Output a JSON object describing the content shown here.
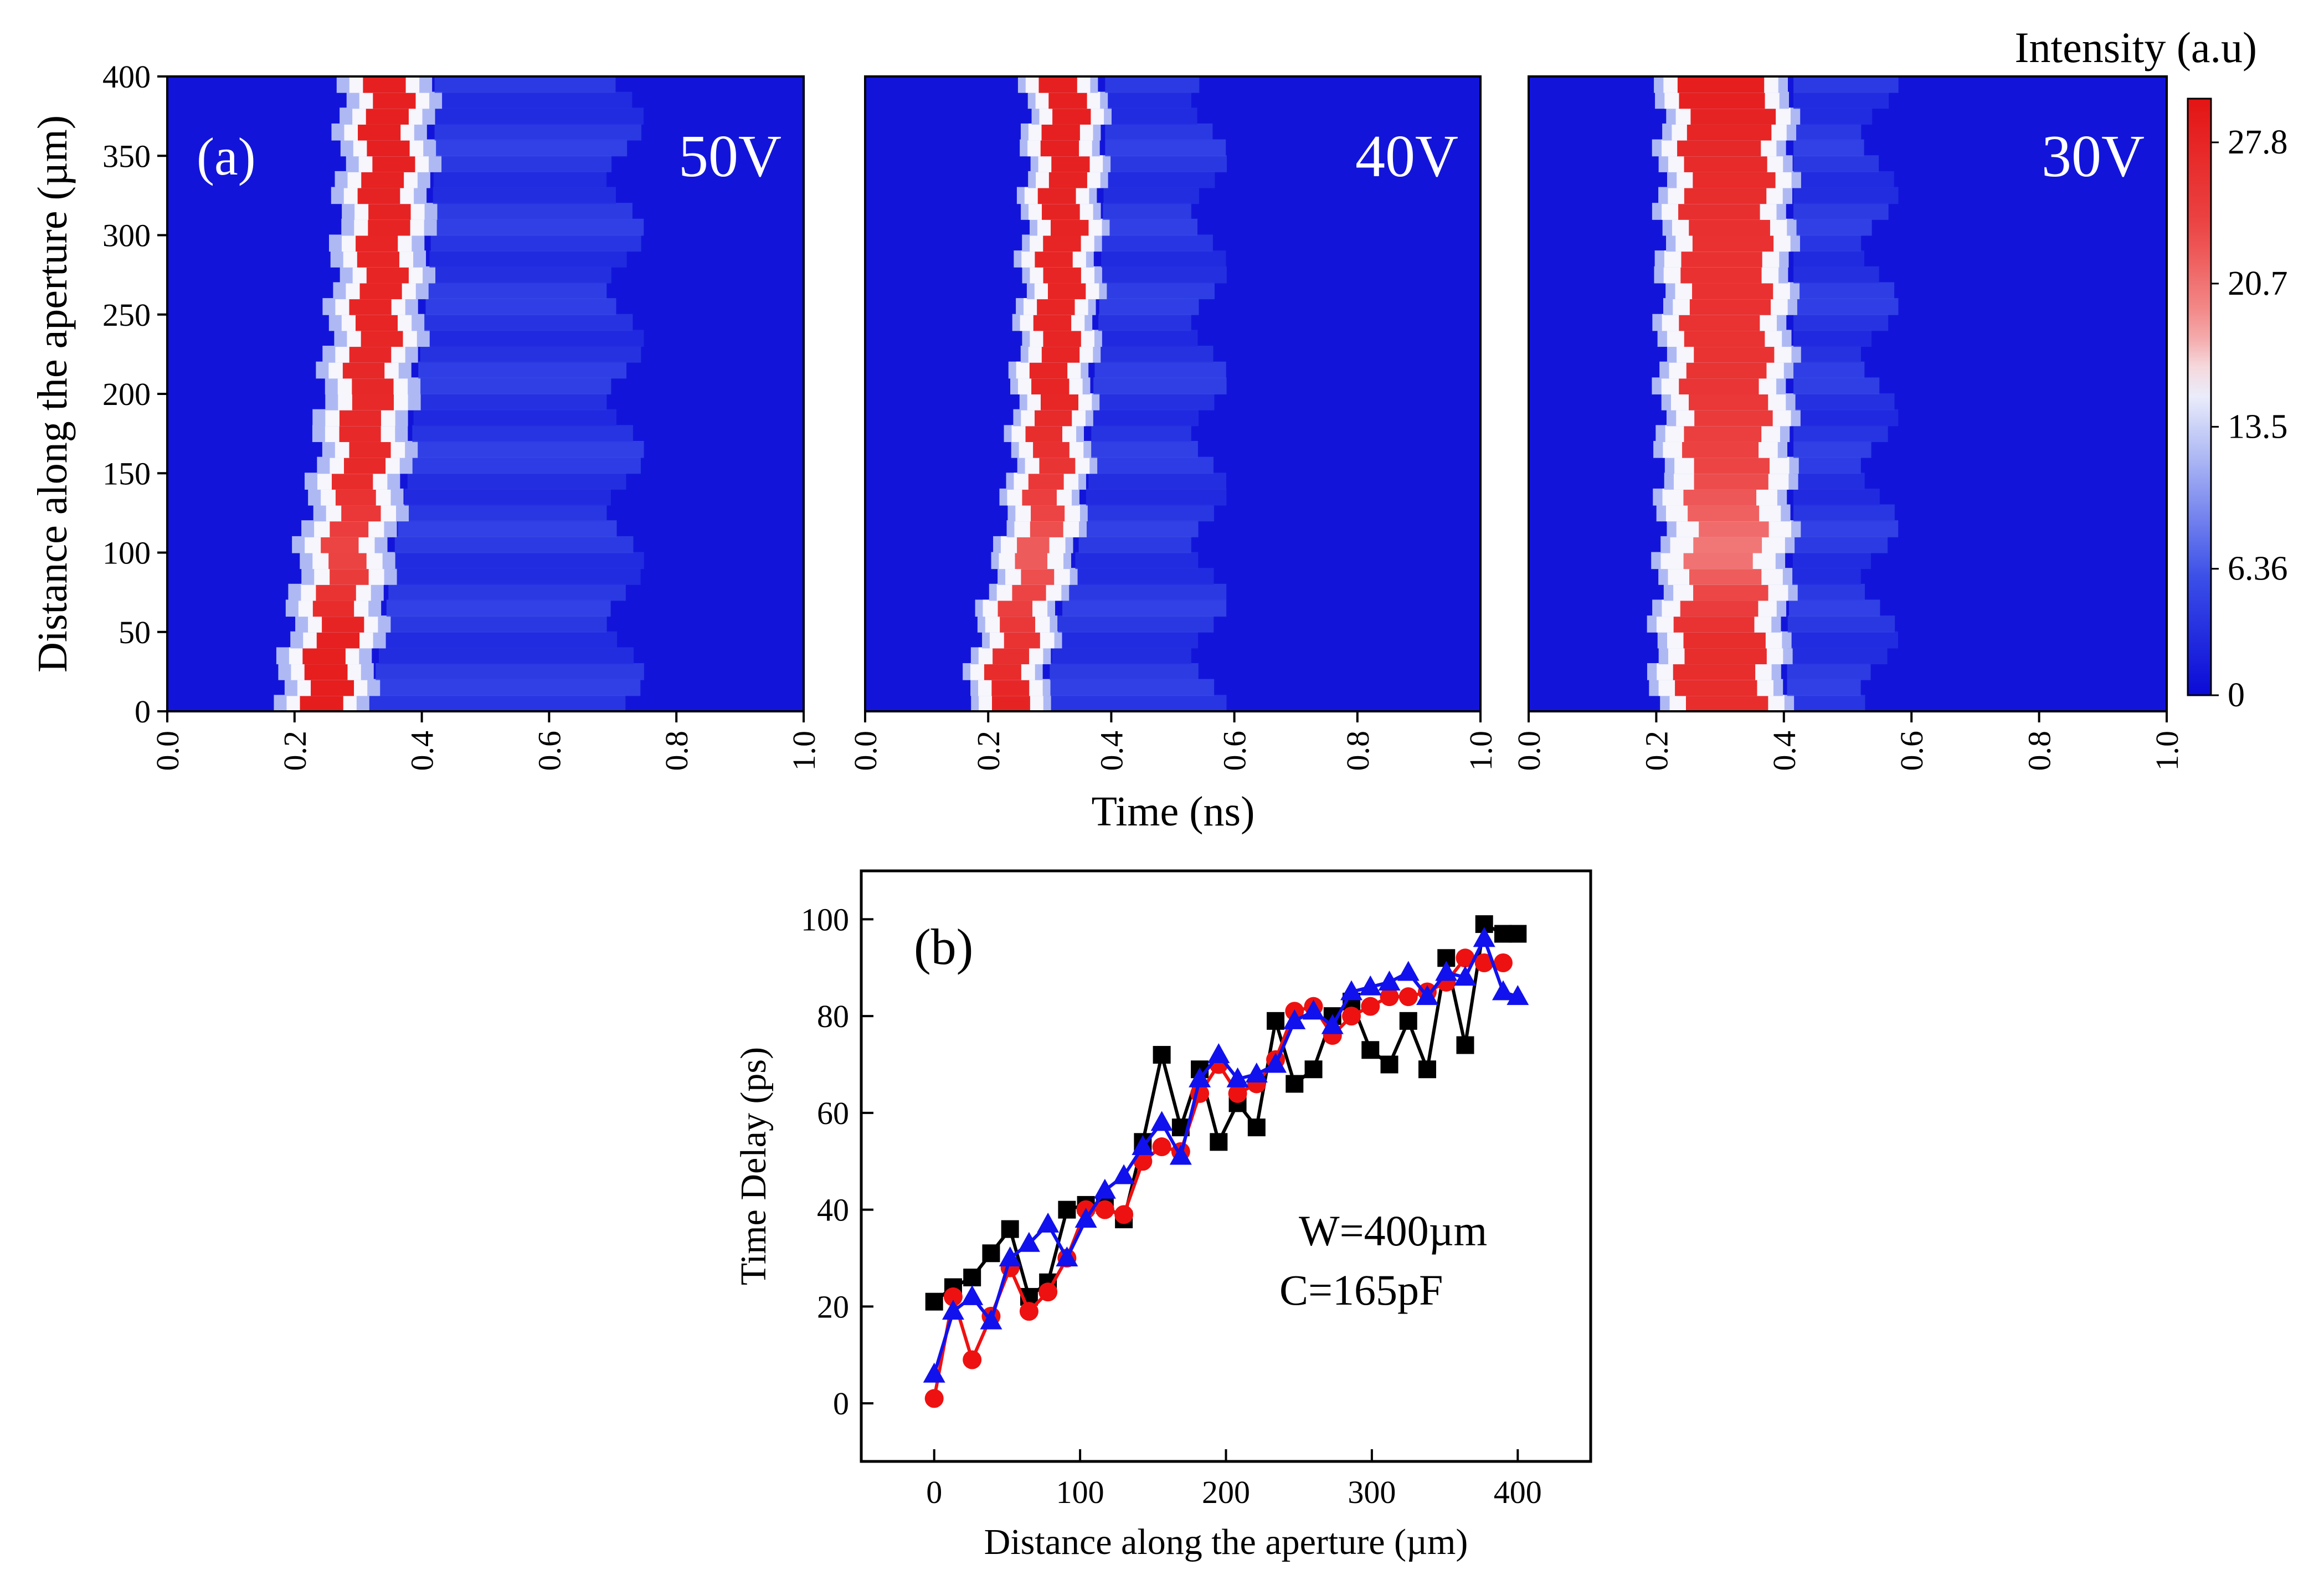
{
  "chart_data": [
    {
      "type": "heatmap",
      "panel_label": "(a)",
      "xlabel": "Time (ns)",
      "ylabel": "Distance along the aperture (µm)",
      "xlim": [
        0,
        1.0
      ],
      "ylim": [
        0,
        400
      ],
      "x_ticks": [
        "0.0",
        "0.2",
        "0.4",
        "0.6",
        "0.8",
        "1.0"
      ],
      "y_ticks": [
        "0",
        "50",
        "100",
        "150",
        "200",
        "250",
        "300",
        "350",
        "400"
      ],
      "colorbar": {
        "title": "Intensity (a.u)",
        "ticks": [
          "0",
          "6.36",
          "13.5",
          "20.7",
          "27.8"
        ],
        "tick_values": [
          0,
          6.36,
          13.5,
          20.7,
          27.8
        ],
        "range": [
          0,
          30
        ],
        "colors": [
          "#0a0ad6",
          "#4a5ae8",
          "#f2f2fa",
          "#f06060",
          "#e41414"
        ]
      },
      "panels": [
        {
          "name": "50V",
          "background_color": "#1424dc",
          "peak_time_ns": [
            [
              0,
              0.24
            ],
            [
              50,
              0.265
            ],
            [
              100,
              0.28
            ],
            [
              150,
              0.305
            ],
            [
              200,
              0.315
            ],
            [
              250,
              0.33
            ],
            [
              300,
              0.34
            ],
            [
              350,
              0.345
            ],
            [
              400,
              0.345
            ]
          ],
          "peak_width_ns": 0.07,
          "halo_width_ns": 0.15,
          "tail_extent_ns": 0.72,
          "peak_intensity": [
            28,
            27,
            18,
            25,
            25,
            26,
            26,
            27,
            27
          ]
        },
        {
          "name": "40V",
          "background_color": "#0f1ed8",
          "peak_time_ns": [
            [
              0,
              0.225
            ],
            [
              50,
              0.245
            ],
            [
              100,
              0.28
            ],
            [
              150,
              0.3
            ],
            [
              200,
              0.305
            ],
            [
              250,
              0.315
            ],
            [
              300,
              0.32
            ],
            [
              350,
              0.325
            ],
            [
              400,
              0.325
            ]
          ],
          "peak_width_ns": 0.065,
          "halo_width_ns": 0.13,
          "tail_extent_ns": 0.56,
          "peak_intensity": [
            27,
            22,
            15,
            22,
            26,
            26,
            26,
            27,
            27
          ]
        },
        {
          "name": "30V",
          "background_color": "#1424dc",
          "peak_time_ns": [
            [
              0,
              0.3
            ],
            [
              50,
              0.3
            ],
            [
              100,
              0.31
            ],
            [
              150,
              0.31
            ],
            [
              200,
              0.31
            ],
            [
              250,
              0.31
            ],
            [
              300,
              0.31
            ],
            [
              350,
              0.31
            ],
            [
              400,
              0.31
            ]
          ],
          "peak_width_ns": 0.14,
          "halo_width_ns": 0.21,
          "tail_extent_ns": 0.55,
          "peak_intensity": [
            24,
            24,
            12,
            18,
            22,
            23,
            23,
            25,
            28
          ]
        }
      ]
    },
    {
      "type": "line",
      "panel_label": "(b)",
      "xlabel": "Distance along the aperture (µm)",
      "ylabel": "Time Delay (ps)",
      "xlim": [
        -50,
        450
      ],
      "ylim": [
        -12,
        110
      ],
      "x_ticks": [
        0,
        100,
        200,
        300,
        400
      ],
      "y_ticks": [
        0,
        20,
        40,
        60,
        80,
        100
      ],
      "annotations": [
        "W=400µm",
        "C=165pF"
      ],
      "series": [
        {
          "name": "50V",
          "color": "#000000",
          "marker": "square",
          "x": [
            0,
            13,
            26,
            39,
            52,
            65,
            78,
            91,
            104,
            117,
            130,
            143,
            156,
            169,
            182,
            195,
            208,
            221,
            234,
            247,
            260,
            273,
            286,
            299,
            312,
            325,
            338,
            351,
            364,
            377,
            390,
            400
          ],
          "y": [
            21,
            24,
            26,
            31,
            36,
            22,
            25,
            40,
            41,
            41,
            38,
            54,
            72,
            57,
            69,
            54,
            62,
            57,
            79,
            66,
            69,
            80,
            83,
            73,
            70,
            79,
            69,
            92,
            74,
            99,
            97,
            97
          ]
        },
        {
          "name": "40V",
          "color": "#ee1111",
          "marker": "circle",
          "x": [
            0,
            13,
            26,
            39,
            52,
            65,
            78,
            91,
            104,
            117,
            130,
            143,
            156,
            169,
            182,
            195,
            208,
            221,
            234,
            247,
            260,
            273,
            286,
            299,
            312,
            325,
            338,
            351,
            364,
            377,
            390
          ],
          "y": [
            1,
            22,
            9,
            18,
            28,
            19,
            23,
            30,
            40,
            40,
            39,
            50,
            53,
            52,
            64,
            70,
            64,
            66,
            71,
            81,
            82,
            76,
            80,
            82,
            84,
            84,
            85,
            87,
            92,
            91,
            91
          ]
        },
        {
          "name": "30V",
          "color": "#1111ee",
          "marker": "triangle",
          "x": [
            0,
            13,
            26,
            39,
            52,
            65,
            78,
            91,
            104,
            117,
            130,
            143,
            156,
            169,
            182,
            195,
            208,
            221,
            234,
            247,
            260,
            273,
            286,
            299,
            312,
            325,
            338,
            351,
            364,
            377,
            390,
            400
          ],
          "y": [
            6,
            19,
            22,
            17,
            30,
            33,
            37,
            30,
            38,
            44,
            47,
            53,
            58,
            51,
            67,
            72,
            67,
            68,
            70,
            79,
            81,
            78,
            85,
            86,
            87,
            89,
            84,
            89,
            88,
            96,
            85,
            84
          ]
        }
      ]
    }
  ]
}
